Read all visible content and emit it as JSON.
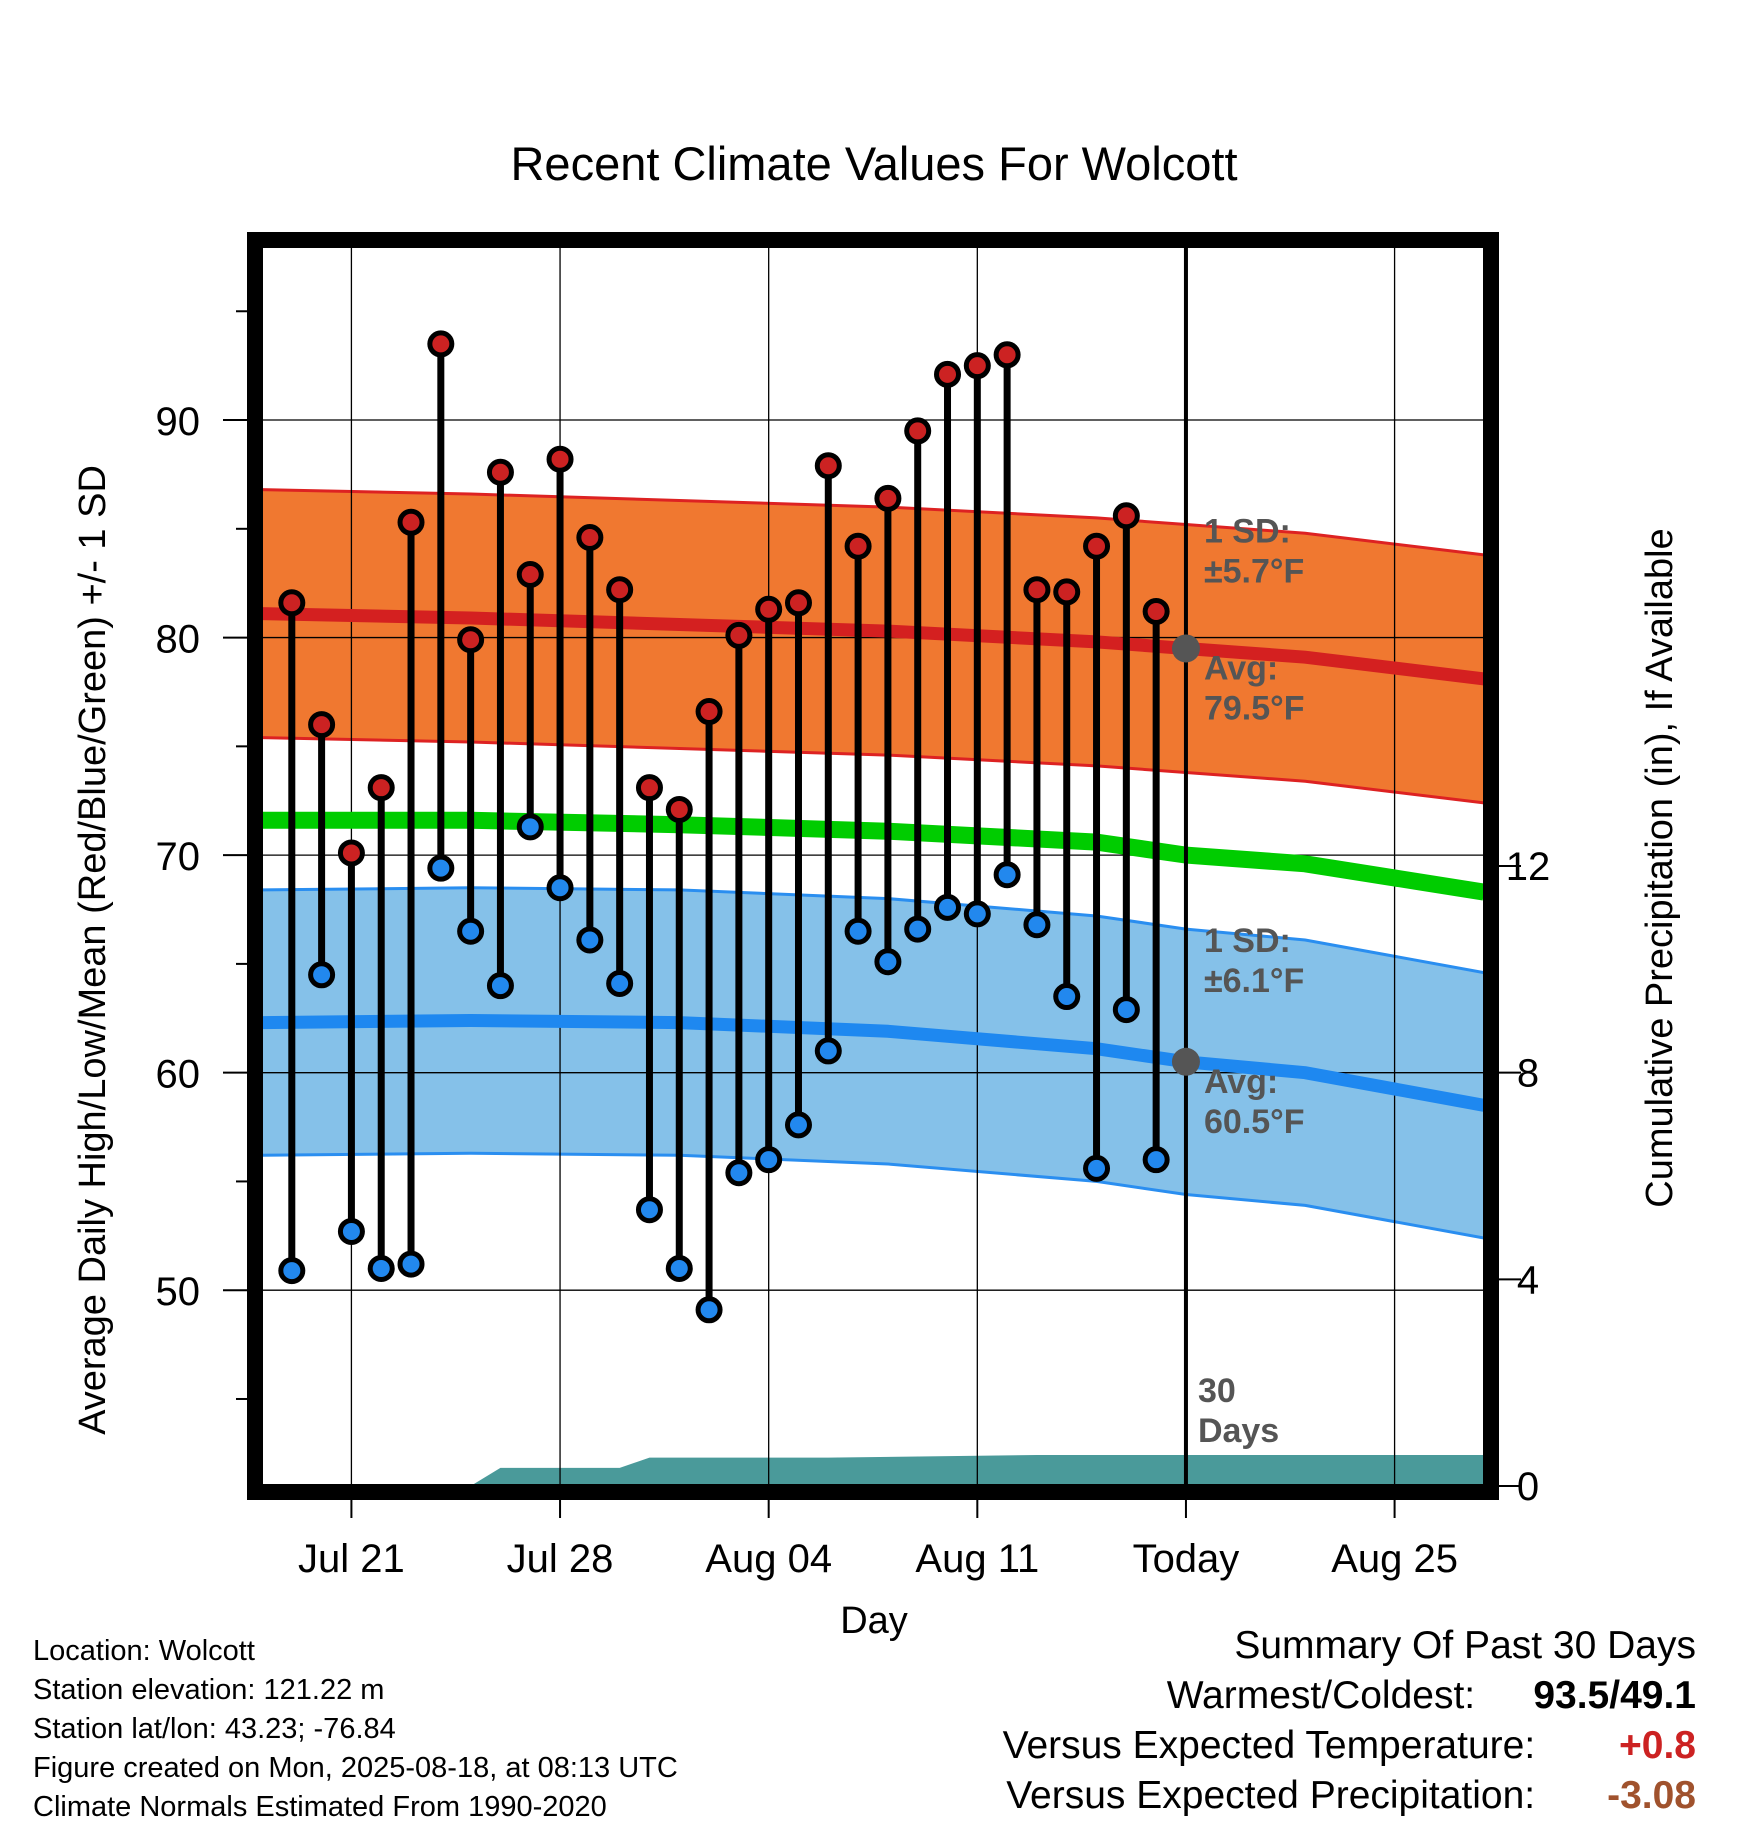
{
  "chart_data": {
    "type": "line",
    "title": "Recent Climate Values For Wolcott",
    "xlabel": "Day",
    "ylabel": "Average Daily High/Low/Mean (Red/Blue/Green) +/- 1 SD",
    "y2label": "Cumulative Precipitation (in), If Available",
    "ylim": [
      41,
      98
    ],
    "y2lim": [
      0,
      24
    ],
    "yticks": [
      "50",
      "60",
      "70",
      "80",
      "90"
    ],
    "y2ticks": [
      "0",
      "4",
      "8",
      "12"
    ],
    "xlim": [
      "2025-07-18",
      "2025-08-28"
    ],
    "xticks": [
      {
        "date": "2025-07-21",
        "label": "Jul 21"
      },
      {
        "date": "2025-07-28",
        "label": "Jul 28"
      },
      {
        "date": "2025-08-04",
        "label": "Aug 04"
      },
      {
        "date": "2025-08-11",
        "label": "Aug 11"
      },
      {
        "date": "2025-08-18",
        "label": "Today"
      },
      {
        "date": "2025-08-25",
        "label": "Aug 25"
      }
    ],
    "today": "2025-08-18",
    "days_marker_label": "30 Days",
    "grid": true,
    "colors": {
      "high_dot": "#cc2222",
      "low_dot": "#2288ee",
      "high_band": "#f07830",
      "high_mean": "#d42020",
      "low_band": "#85c1e9",
      "low_mean": "#1e88f0",
      "band_edge_high": "#dd2222",
      "band_edge_low": "#2a8ef0",
      "mean_line": "#00cc00",
      "precip": "#4a9a9a",
      "today_marker": "#555555"
    },
    "daily_obs": {
      "dates": [
        "2025-07-19",
        "2025-07-20",
        "2025-07-21",
        "2025-07-22",
        "2025-07-23",
        "2025-07-24",
        "2025-07-25",
        "2025-07-26",
        "2025-07-27",
        "2025-07-28",
        "2025-07-29",
        "2025-07-30",
        "2025-07-31",
        "2025-08-01",
        "2025-08-02",
        "2025-08-03",
        "2025-08-04",
        "2025-08-05",
        "2025-08-06",
        "2025-08-07",
        "2025-08-08",
        "2025-08-09",
        "2025-08-10",
        "2025-08-11",
        "2025-08-12",
        "2025-08-13",
        "2025-08-14",
        "2025-08-15",
        "2025-08-16",
        "2025-08-17"
      ],
      "high": [
        81.6,
        76.0,
        70.1,
        73.1,
        85.3,
        93.5,
        79.9,
        87.6,
        82.9,
        88.2,
        84.6,
        82.2,
        73.1,
        72.1,
        76.6,
        80.1,
        81.3,
        81.6,
        87.9,
        84.2,
        86.4,
        89.5,
        92.1,
        92.5,
        93.0,
        82.2,
        82.1,
        84.2,
        85.6,
        81.2
      ],
      "low": [
        50.9,
        64.5,
        52.7,
        51.0,
        51.2,
        69.4,
        66.5,
        64.0,
        71.3,
        68.5,
        66.1,
        64.1,
        53.7,
        51.0,
        49.1,
        55.4,
        56.0,
        57.6,
        61.0,
        66.5,
        65.1,
        66.6,
        67.6,
        67.3,
        69.1,
        66.8,
        63.5,
        55.6,
        62.9,
        56.0
      ]
    },
    "normals": {
      "dates": [
        "2025-07-18",
        "2025-07-25",
        "2025-08-01",
        "2025-08-08",
        "2025-08-15",
        "2025-08-18",
        "2025-08-22",
        "2025-08-28"
      ],
      "high_avg": [
        81.1,
        80.9,
        80.6,
        80.3,
        79.8,
        79.5,
        79.1,
        78.1
      ],
      "low_avg": [
        62.3,
        62.4,
        62.3,
        61.9,
        61.1,
        60.5,
        60.0,
        58.5
      ],
      "mean_avg": [
        71.6,
        71.6,
        71.4,
        71.1,
        70.6,
        70.0,
        69.6,
        68.3
      ],
      "high_sd": 5.7,
      "low_sd": 6.1
    },
    "precip_cumulative": {
      "dates": [
        "2025-07-18",
        "2025-07-25",
        "2025-07-26",
        "2025-07-30",
        "2025-07-31",
        "2025-08-06",
        "2025-08-13",
        "2025-08-17",
        "2025-08-18",
        "2025-08-28"
      ],
      "values": [
        0.0,
        0.0,
        0.35,
        0.35,
        0.55,
        0.55,
        0.6,
        0.6,
        0.6,
        0.6
      ]
    },
    "annotations": {
      "high_sd_label": "1 SD:",
      "high_sd_value": "±5.7°F",
      "high_avg_label": "Avg:",
      "high_avg_value": "79.5°F",
      "low_sd_label": "1 SD:",
      "low_sd_value": "±6.1°F",
      "low_avg_label": "Avg:",
      "low_avg_value": "60.5°F"
    }
  },
  "footer": {
    "location": "Location: Wolcott",
    "elevation": "Station elevation: 121.22 m",
    "latlon": "Station lat/lon: 43.23; -76.84",
    "created": "Figure created on Mon, 2025-08-18, at 08:13 UTC",
    "normals": "Climate Normals Estimated From 1990-2020"
  },
  "summary": {
    "title": "Summary Of Past 30 Days",
    "warm_cold_label": "Warmest/Coldest:",
    "warm_cold_value": "93.5/49.1",
    "temp_label": "Versus Expected Temperature:",
    "temp_value": "+0.8",
    "temp_color": "#cc2222",
    "precip_label": "Versus Expected Precipitation:",
    "precip_value": "-3.08",
    "precip_color": "#a0522d"
  }
}
